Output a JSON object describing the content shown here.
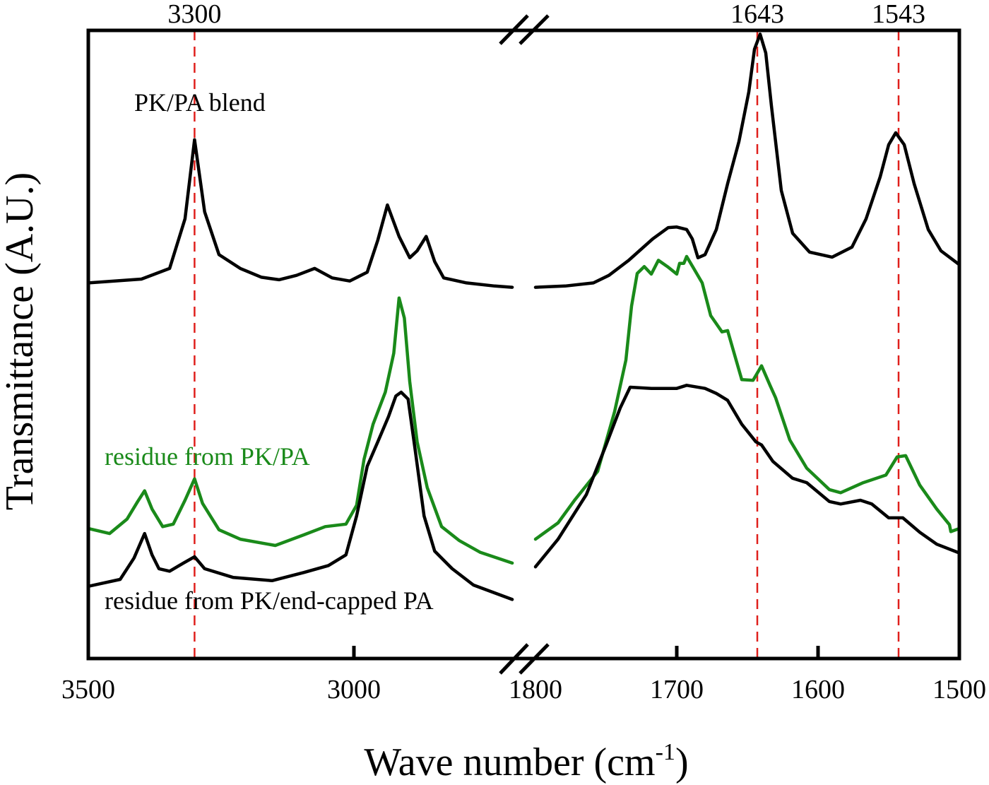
{
  "chart_data": {
    "type": "line",
    "title": "",
    "xlabel": "Wave number (cm",
    "xlabel_sup": "-1",
    "xlabel_close": ")",
    "ylabel": "Transmittance (A.U.)",
    "x_axis": {
      "broken": true,
      "reversed": true,
      "segments": [
        {
          "range": [
            3500,
            2700
          ],
          "ticks": [
            3500,
            3000
          ]
        },
        {
          "range": [
            1800,
            1500
          ],
          "ticks": [
            1800,
            1700,
            1600,
            1500
          ]
        }
      ],
      "tick_labels": [
        "3500",
        "3000",
        "1800",
        "1700",
        "1600",
        "1500"
      ]
    },
    "ylim": [
      0,
      1
    ],
    "grid": false,
    "reference_lines": [
      {
        "x": 3300,
        "label": "3300",
        "color": "#e0201c"
      },
      {
        "x": 1643,
        "label": "1643",
        "color": "#e0201c"
      },
      {
        "x": 1543,
        "label": "1543",
        "color": "#e0201c"
      }
    ],
    "annotations": [
      {
        "text": "PK/PA blend",
        "color": "#000000"
      },
      {
        "text": "residue from PK/PA",
        "color": "#1a8a1a"
      },
      {
        "text": "residue from PK/end-capped PA",
        "color": "#000000"
      }
    ],
    "series": [
      {
        "name": "PK/PA blend",
        "color": "#000000",
        "points": [
          [
            3500,
            0.598
          ],
          [
            3400,
            0.604
          ],
          [
            3347,
            0.621
          ],
          [
            3318,
            0.7
          ],
          [
            3300,
            0.826
          ],
          [
            3281,
            0.711
          ],
          [
            3254,
            0.643
          ],
          [
            3214,
            0.621
          ],
          [
            3174,
            0.607
          ],
          [
            3141,
            0.603
          ],
          [
            3108,
            0.61
          ],
          [
            3074,
            0.621
          ],
          [
            3041,
            0.606
          ],
          [
            3008,
            0.601
          ],
          [
            2975,
            0.615
          ],
          [
            2955,
            0.666
          ],
          [
            2937,
            0.722
          ],
          [
            2915,
            0.672
          ],
          [
            2895,
            0.638
          ],
          [
            2881,
            0.649
          ],
          [
            2864,
            0.672
          ],
          [
            2848,
            0.632
          ],
          [
            2831,
            0.606
          ],
          [
            2788,
            0.598
          ],
          [
            2735,
            0.593
          ],
          [
            2702,
            0.591
          ],
          null,
          [
            1800,
            0.591
          ],
          [
            1779,
            0.593
          ],
          [
            1759,
            0.598
          ],
          [
            1748,
            0.61
          ],
          [
            1734,
            0.634
          ],
          [
            1717,
            0.668
          ],
          [
            1706,
            0.686
          ],
          [
            1700,
            0.687
          ],
          [
            1693,
            0.683
          ],
          [
            1689,
            0.668
          ],
          [
            1685,
            0.638
          ],
          [
            1680,
            0.643
          ],
          [
            1672,
            0.683
          ],
          [
            1664,
            0.756
          ],
          [
            1656,
            0.823
          ],
          [
            1649,
            0.902
          ],
          [
            1645,
            0.97
          ],
          [
            1641,
            0.994
          ],
          [
            1637,
            0.964
          ],
          [
            1633,
            0.88
          ],
          [
            1626,
            0.745
          ],
          [
            1618,
            0.677
          ],
          [
            1606,
            0.647
          ],
          [
            1590,
            0.639
          ],
          [
            1576,
            0.655
          ],
          [
            1566,
            0.7
          ],
          [
            1556,
            0.767
          ],
          [
            1550,
            0.818
          ],
          [
            1545,
            0.837
          ],
          [
            1539,
            0.818
          ],
          [
            1532,
            0.756
          ],
          [
            1522,
            0.683
          ],
          [
            1513,
            0.649
          ],
          [
            1500,
            0.627
          ]
        ]
      },
      {
        "name": "residue from PK/PA",
        "color": "#1a8a1a",
        "points": [
          [
            3500,
            0.207
          ],
          [
            3460,
            0.199
          ],
          [
            3427,
            0.222
          ],
          [
            3407,
            0.25
          ],
          [
            3394,
            0.267
          ],
          [
            3380,
            0.238
          ],
          [
            3360,
            0.21
          ],
          [
            3340,
            0.214
          ],
          [
            3318,
            0.252
          ],
          [
            3300,
            0.286
          ],
          [
            3285,
            0.247
          ],
          [
            3254,
            0.205
          ],
          [
            3214,
            0.19
          ],
          [
            3148,
            0.18
          ],
          [
            3094,
            0.197
          ],
          [
            3054,
            0.21
          ],
          [
            3015,
            0.214
          ],
          [
            2995,
            0.244
          ],
          [
            2981,
            0.317
          ],
          [
            2964,
            0.373
          ],
          [
            2941,
            0.424
          ],
          [
            2925,
            0.486
          ],
          [
            2915,
            0.574
          ],
          [
            2905,
            0.542
          ],
          [
            2895,
            0.441
          ],
          [
            2881,
            0.345
          ],
          [
            2862,
            0.272
          ],
          [
            2835,
            0.21
          ],
          [
            2802,
            0.188
          ],
          [
            2762,
            0.169
          ],
          [
            2702,
            0.152
          ],
          null,
          [
            1800,
            0.19
          ],
          [
            1784,
            0.216
          ],
          [
            1772,
            0.253
          ],
          [
            1756,
            0.298
          ],
          [
            1744,
            0.393
          ],
          [
            1736,
            0.475
          ],
          [
            1732,
            0.561
          ],
          [
            1728,
            0.613
          ],
          [
            1723,
            0.624
          ],
          [
            1718,
            0.612
          ],
          [
            1713,
            0.634
          ],
          [
            1706,
            0.623
          ],
          [
            1700,
            0.612
          ],
          [
            1698,
            0.629
          ],
          [
            1695,
            0.629
          ],
          [
            1693,
            0.64
          ],
          [
            1688,
            0.621
          ],
          [
            1682,
            0.598
          ],
          [
            1676,
            0.546
          ],
          [
            1668,
            0.52
          ],
          [
            1664,
            0.522
          ],
          [
            1654,
            0.444
          ],
          [
            1646,
            0.443
          ],
          [
            1640,
            0.466
          ],
          [
            1634,
            0.435
          ],
          [
            1630,
            0.415
          ],
          [
            1620,
            0.348
          ],
          [
            1608,
            0.303
          ],
          [
            1592,
            0.269
          ],
          [
            1584,
            0.264
          ],
          [
            1568,
            0.28
          ],
          [
            1552,
            0.292
          ],
          [
            1544,
            0.321
          ],
          [
            1538,
            0.323
          ],
          [
            1528,
            0.276
          ],
          [
            1516,
            0.238
          ],
          [
            1507,
            0.213
          ],
          [
            1506,
            0.202
          ],
          [
            1500,
            0.207
          ]
        ]
      },
      {
        "name": "residue from PK/end-capped PA",
        "color": "#000000",
        "points": [
          [
            3500,
            0.115
          ],
          [
            3440,
            0.126
          ],
          [
            3414,
            0.16
          ],
          [
            3394,
            0.199
          ],
          [
            3380,
            0.165
          ],
          [
            3367,
            0.143
          ],
          [
            3347,
            0.139
          ],
          [
            3321,
            0.152
          ],
          [
            3300,
            0.162
          ],
          [
            3281,
            0.143
          ],
          [
            3227,
            0.129
          ],
          [
            3154,
            0.124
          ],
          [
            3094,
            0.137
          ],
          [
            3048,
            0.148
          ],
          [
            3015,
            0.165
          ],
          [
            2995,
            0.227
          ],
          [
            2975,
            0.306
          ],
          [
            2955,
            0.345
          ],
          [
            2935,
            0.385
          ],
          [
            2921,
            0.418
          ],
          [
            2911,
            0.424
          ],
          [
            2898,
            0.413
          ],
          [
            2884,
            0.328
          ],
          [
            2868,
            0.227
          ],
          [
            2848,
            0.171
          ],
          [
            2815,
            0.143
          ],
          [
            2775,
            0.117
          ],
          [
            2702,
            0.094
          ],
          null,
          [
            1800,
            0.146
          ],
          [
            1784,
            0.19
          ],
          [
            1764,
            0.261
          ],
          [
            1750,
            0.34
          ],
          [
            1740,
            0.399
          ],
          [
            1733,
            0.432
          ],
          [
            1718,
            0.43
          ],
          [
            1700,
            0.43
          ],
          [
            1693,
            0.435
          ],
          [
            1680,
            0.43
          ],
          [
            1672,
            0.422
          ],
          [
            1664,
            0.411
          ],
          [
            1654,
            0.373
          ],
          [
            1644,
            0.345
          ],
          [
            1640,
            0.34
          ],
          [
            1632,
            0.314
          ],
          [
            1618,
            0.287
          ],
          [
            1608,
            0.28
          ],
          [
            1592,
            0.25
          ],
          [
            1584,
            0.246
          ],
          [
            1570,
            0.252
          ],
          [
            1562,
            0.246
          ],
          [
            1550,
            0.224
          ],
          [
            1540,
            0.224
          ],
          [
            1528,
            0.201
          ],
          [
            1516,
            0.182
          ],
          [
            1500,
            0.168
          ]
        ]
      }
    ]
  }
}
